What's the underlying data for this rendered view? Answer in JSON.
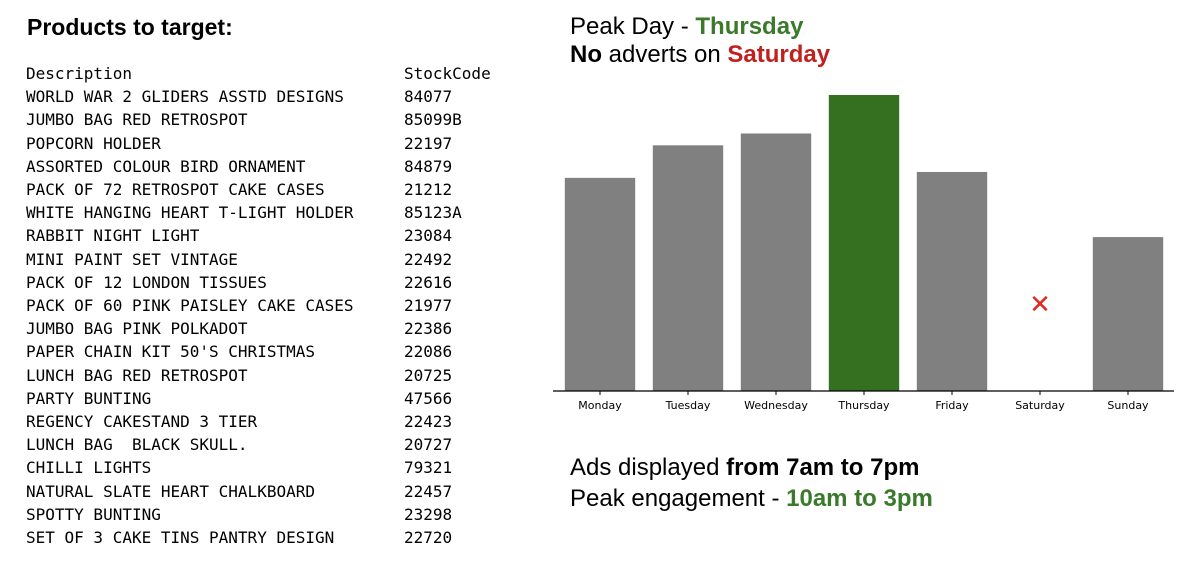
{
  "left": {
    "title": "Products to target:",
    "table": {
      "headers": [
        "Description",
        "StockCode"
      ],
      "rows": [
        [
          "WORLD WAR 2 GLIDERS ASSTD DESIGNS",
          "84077"
        ],
        [
          "JUMBO BAG RED RETROSPOT",
          "85099B"
        ],
        [
          "POPCORN HOLDER",
          "22197"
        ],
        [
          "ASSORTED COLOUR BIRD ORNAMENT",
          "84879"
        ],
        [
          "PACK OF 72 RETROSPOT CAKE CASES",
          "21212"
        ],
        [
          "WHITE HANGING HEART T-LIGHT HOLDER",
          "85123A"
        ],
        [
          "RABBIT NIGHT LIGHT",
          "23084"
        ],
        [
          "MINI PAINT SET VINTAGE",
          "22492"
        ],
        [
          "PACK OF 12 LONDON TISSUES",
          "22616"
        ],
        [
          "PACK OF 60 PINK PAISLEY CAKE CASES",
          "21977"
        ],
        [
          "JUMBO BAG PINK POLKADOT",
          "22386"
        ],
        [
          "PAPER CHAIN KIT 50'S CHRISTMAS",
          "22086"
        ],
        [
          "LUNCH BAG RED RETROSPOT",
          "20725"
        ],
        [
          "PARTY BUNTING",
          "47566"
        ],
        [
          "REGENCY CAKESTAND 3 TIER",
          "22423"
        ],
        [
          "LUNCH BAG  BLACK SKULL.",
          "20727"
        ],
        [
          "CHILLI LIGHTS",
          "79321"
        ],
        [
          "NATURAL SLATE HEART CHALKBOARD",
          "22457"
        ],
        [
          "SPOTTY BUNTING",
          "23298"
        ],
        [
          "SET OF 3 CAKE TINS PANTRY DESIGN",
          "22720"
        ]
      ]
    }
  },
  "headline": {
    "line1_prefix": "Peak Day - ",
    "line1_day": "Thursday",
    "line2_bold": "No",
    "line2_mid": " adverts on ",
    "line2_day": "Saturday"
  },
  "notes": {
    "line1_prefix": "Ads displayed ",
    "line1_bold": "from 7am to 7pm",
    "line2_prefix": "Peak engagement - ",
    "line2_bold": "10am to 3pm"
  },
  "colors": {
    "bar": "#808080",
    "highlight": "#34701f",
    "marker": "#dd2b20",
    "axis": "#000000"
  },
  "chart_data": {
    "type": "bar",
    "title": "",
    "xlabel": "",
    "ylabel": "",
    "categories": [
      "Monday",
      "Tuesday",
      "Wednesday",
      "Thursday",
      "Friday",
      "Saturday",
      "Sunday"
    ],
    "values": [
      72,
      83,
      87,
      100,
      74,
      0,
      52
    ],
    "highlight": "Thursday",
    "excluded": "Saturday",
    "excluded_marker": "✕",
    "ylim": [
      0,
      100
    ],
    "grid": false,
    "yaxis_visible": false
  }
}
